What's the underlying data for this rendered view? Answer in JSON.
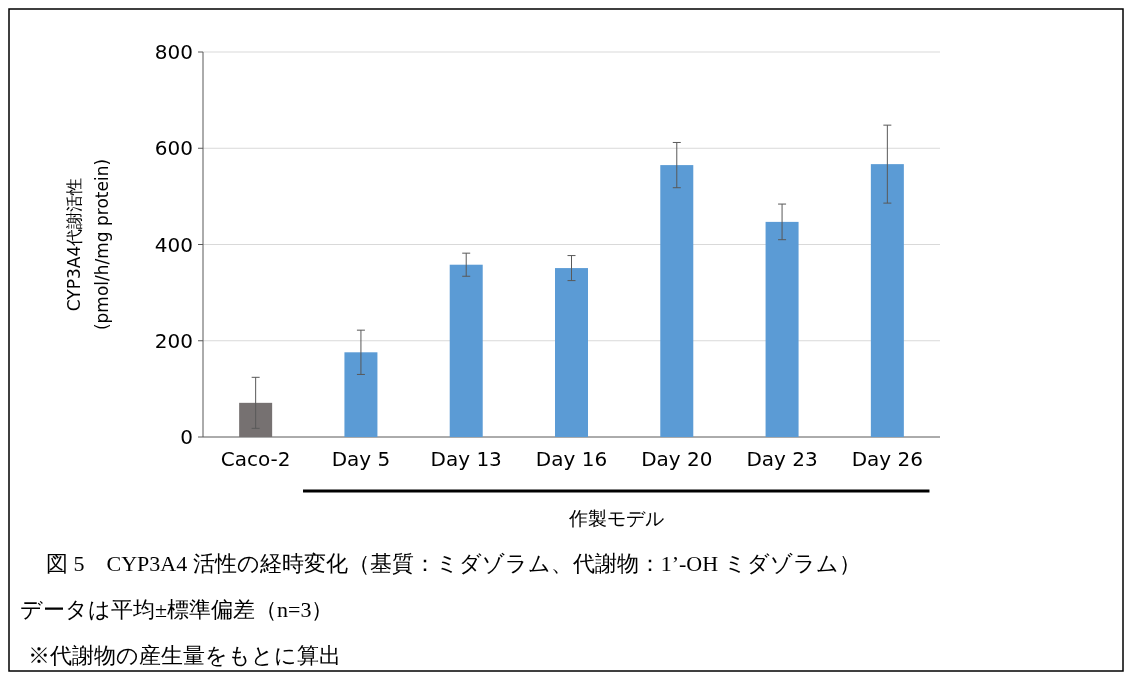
{
  "chart_data": {
    "type": "bar",
    "ylabel": "CYP3A4代謝活性\n(pmol/h/mg protein)",
    "xlabel": "作製モデル",
    "categories": [
      "Caco-2",
      "Day 5",
      "Day 13",
      "Day 16",
      "Day 20",
      "Day 23",
      "Day 26"
    ],
    "values": [
      71,
      176,
      358,
      351,
      565,
      447,
      567
    ],
    "errors": [
      53,
      46,
      24,
      26,
      47,
      37,
      81
    ],
    "colors": [
      "#767171",
      "#5b9bd5",
      "#5b9bd5",
      "#5b9bd5",
      "#5b9bd5",
      "#5b9bd5",
      "#5b9bd5"
    ],
    "ylim": [
      0,
      800
    ],
    "yticks": [
      0,
      200,
      400,
      600,
      800
    ],
    "grid": "y",
    "annotations": [
      "図 5　CYP3A4 活性の経時変化（基質：ミダゾラム、代謝物：1’-OH ミダゾラム）",
      "データは平均±標準偏差（n=3）",
      "※代謝物の産生量をもとに算出"
    ]
  }
}
